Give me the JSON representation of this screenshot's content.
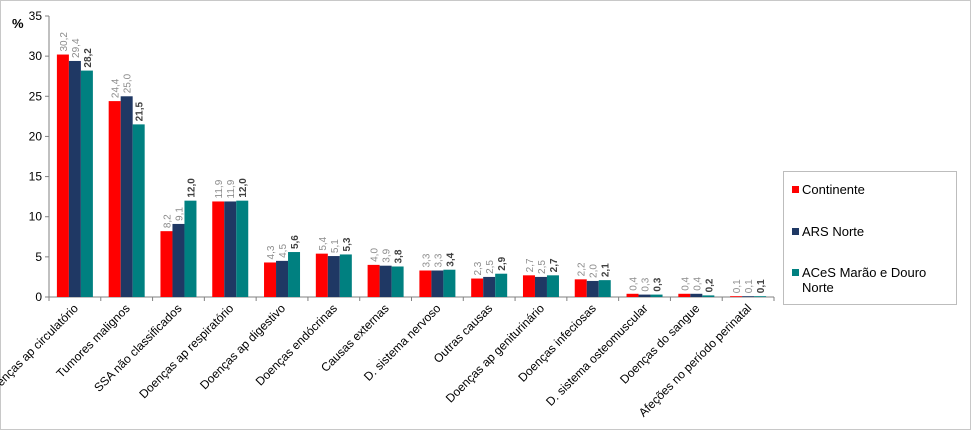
{
  "chart_data": {
    "type": "bar",
    "ylabel": "%",
    "ylim": [
      0,
      35
    ],
    "yticks": [
      "0",
      "5",
      "10",
      "15",
      "20",
      "25",
      "30",
      "35"
    ],
    "grid": false,
    "legend_position": "right",
    "categories": [
      "Doenças ap circulatório",
      "Tumores malignos",
      "SSA não classificados",
      "Doenças ap respiratório",
      "Doenças ap digestivo",
      "Doenças endócrinas",
      "Causas externas",
      "D. sistema nervoso",
      "Outras causas",
      "Doenças ap geniturinário",
      "Doenças infeciosas",
      "D. sistema osteomuscular",
      "Doenças do sangue",
      "Afeções no período perinatal"
    ],
    "series": [
      {
        "name": "Continente",
        "color": "#ff0000",
        "values": [
          30.2,
          24.4,
          8.2,
          11.9,
          4.3,
          5.4,
          4.0,
          3.3,
          2.3,
          2.7,
          2.2,
          0.4,
          0.4,
          0.1
        ],
        "labels": [
          "30,2",
          "24,4",
          "8,2",
          "11,9",
          "4,3",
          "5,4",
          "4,0",
          "3,3",
          "2,3",
          "2,7",
          "2,2",
          "0,4",
          "0,4",
          "0,1"
        ]
      },
      {
        "name": "ARS Norte",
        "color": "#1f3864",
        "values": [
          29.4,
          25.0,
          9.1,
          11.9,
          4.5,
          5.1,
          3.9,
          3.3,
          2.5,
          2.5,
          2.0,
          0.3,
          0.4,
          0.1
        ],
        "labels": [
          "29,4",
          "25,0",
          "9,1",
          "11,9",
          "4,5",
          "5,1",
          "3,9",
          "3,3",
          "2,5",
          "2,5",
          "2,0",
          "0,3",
          "0,4",
          "0,1"
        ]
      },
      {
        "name": "ACeS Marão e Douro Norte",
        "color": "#008080",
        "values": [
          28.2,
          21.5,
          12.0,
          12.0,
          5.6,
          5.3,
          3.8,
          3.4,
          2.9,
          2.7,
          2.1,
          0.3,
          0.2,
          0.1
        ],
        "labels": [
          "28,2",
          "21,5",
          "12,0",
          "12,0",
          "5,6",
          "5,3",
          "3,8",
          "3,4",
          "2,9",
          "2,7",
          "2,1",
          "0,3",
          "0,2",
          "0,1"
        ]
      }
    ]
  },
  "legend": {
    "items": [
      {
        "label": "Continente",
        "color": "#ff0000"
      },
      {
        "label": "ARS Norte",
        "color": "#1f3864"
      },
      {
        "label": "ACeS Marão e Douro Norte",
        "color": "#008080"
      }
    ]
  }
}
